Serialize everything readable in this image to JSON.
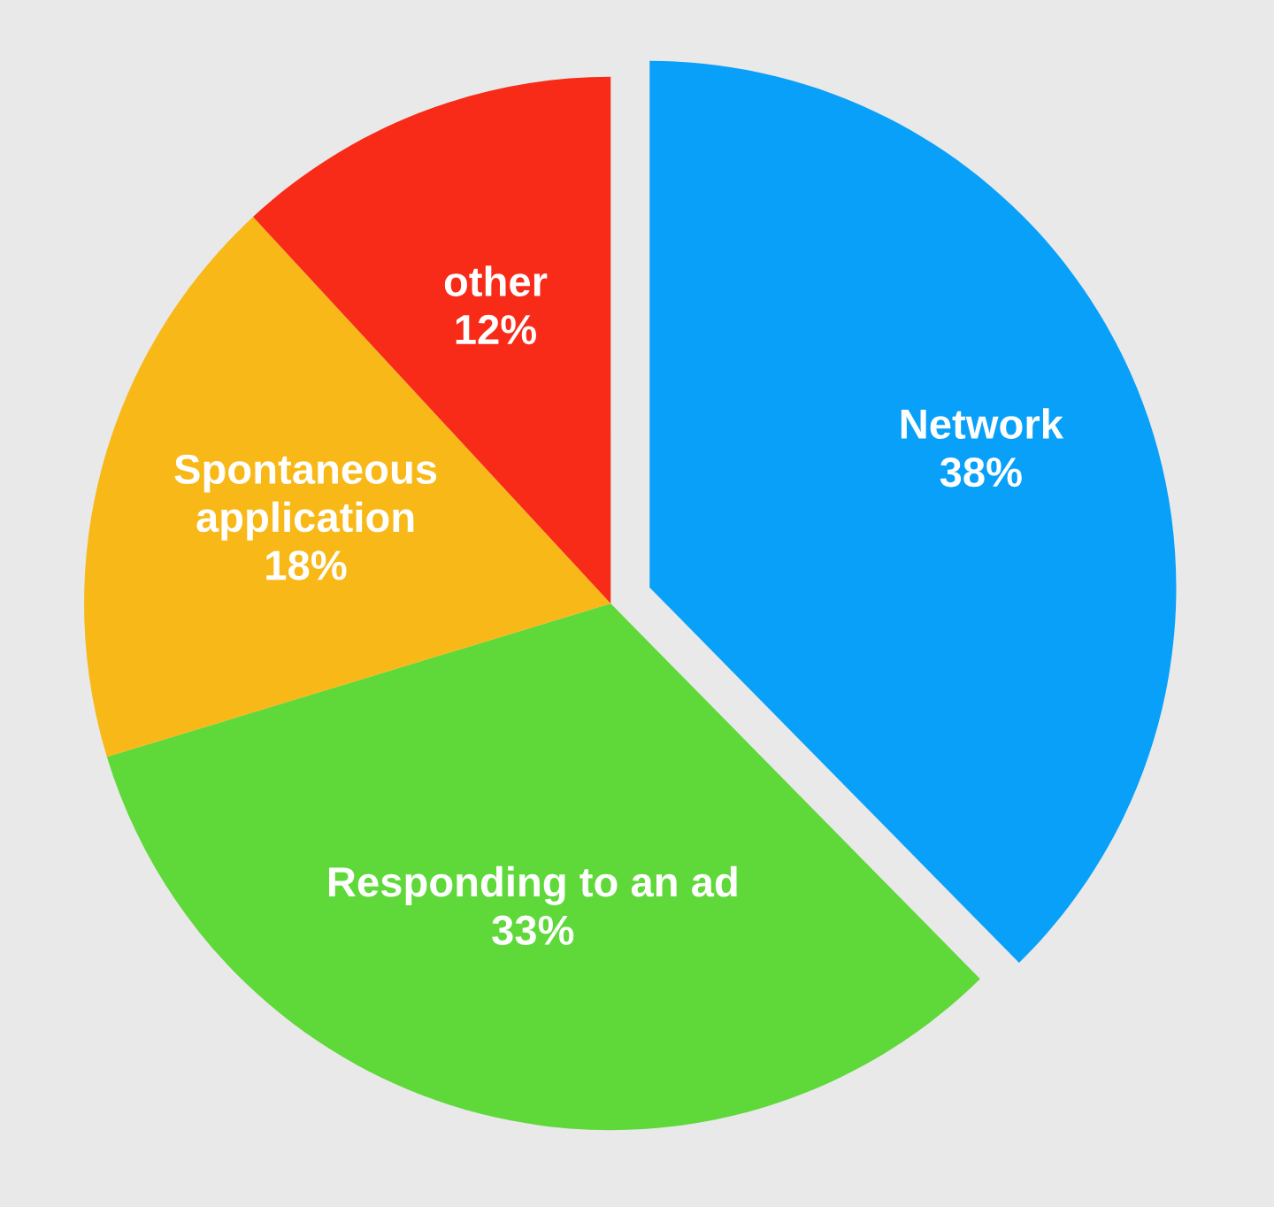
{
  "chart_data": {
    "type": "pie",
    "categories": [
      "Network",
      "Responding to an ad",
      "Spontaneous application",
      "other"
    ],
    "values": [
      38,
      33,
      18,
      12
    ],
    "value_labels": [
      "38%",
      "33%",
      "18%",
      "12%"
    ],
    "colors": [
      "#08a0f8",
      "#5fd83a",
      "#f8b818",
      "#f82a18"
    ],
    "legend": false
  }
}
